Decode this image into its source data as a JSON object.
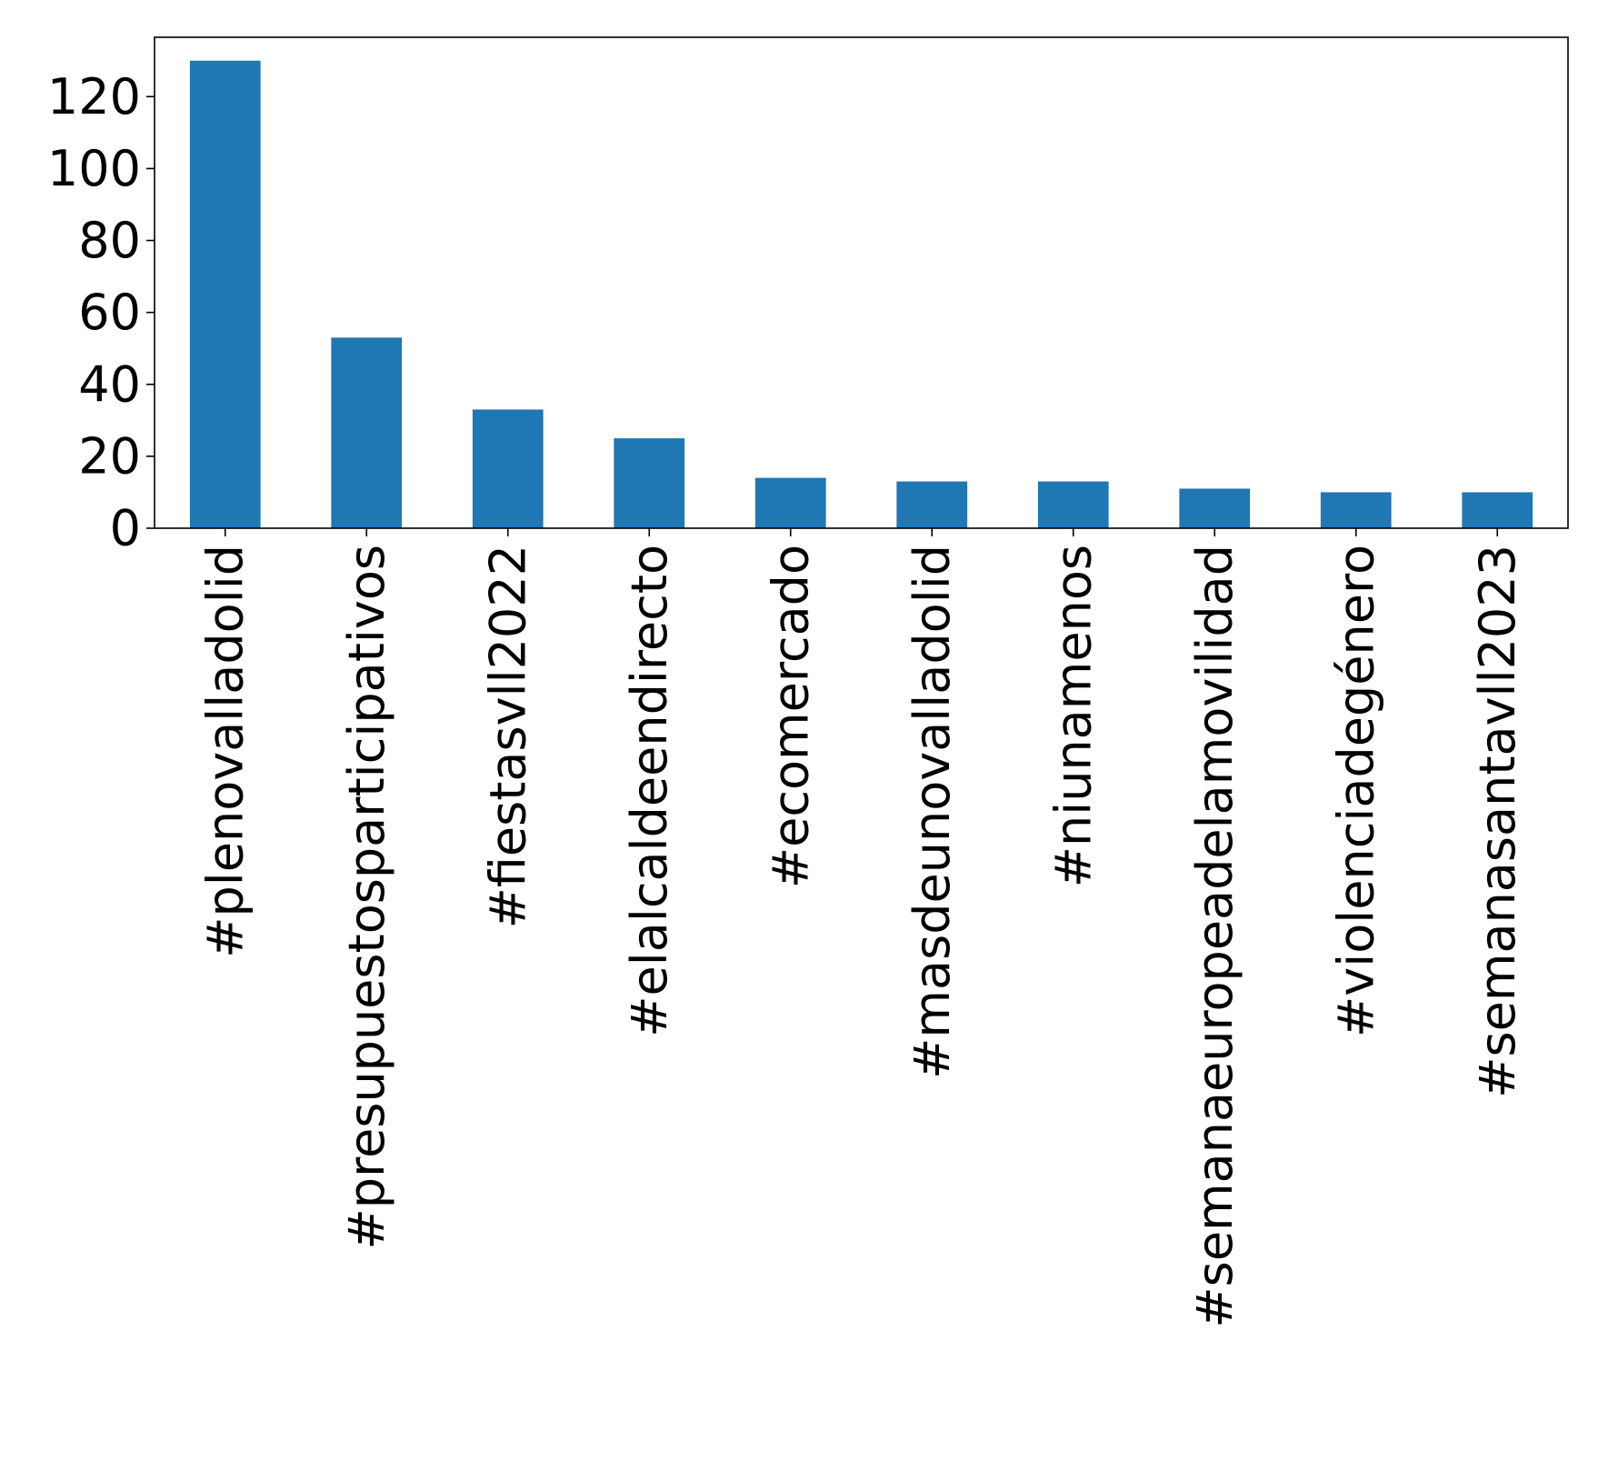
{
  "chart_data": {
    "type": "bar",
    "title": "",
    "xlabel": "",
    "ylabel": "",
    "categories": [
      "#plenovalladolid",
      "#presupuestosparticipativos",
      "#fiestasvll2022",
      "#elalcaldeendirecto",
      "#ecomercado",
      "#masdeunovalladolid",
      "#niunamenos",
      "#semanaeuropeadelamovilidad",
      "#violenciadegénero",
      "#semanasantavll2023"
    ],
    "values": [
      130,
      53,
      33,
      25,
      14,
      13,
      13,
      11,
      10,
      10
    ],
    "ylim": [
      0,
      136.5
    ],
    "yticks": [
      0,
      20,
      40,
      60,
      80,
      100,
      120
    ],
    "grid": false,
    "legend": "none",
    "colors": {
      "bar": "#1f77b4",
      "axis": "#000000",
      "background": "#ffffff"
    }
  }
}
